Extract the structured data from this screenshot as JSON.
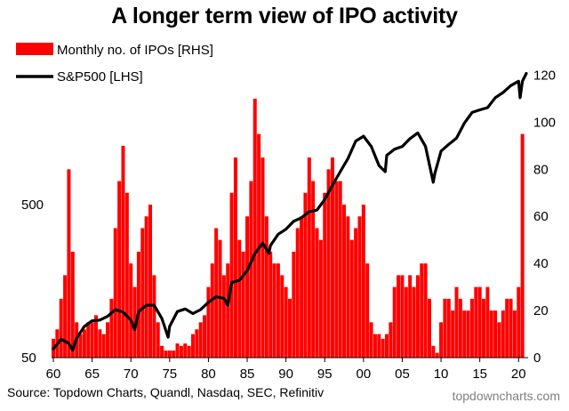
{
  "title": "A longer term view of IPO activity",
  "source": "Source: Topdown Charts, Quandl, Nasdaq, SEC, Refinitiv",
  "brand": "topdowncharts.com",
  "colors": {
    "ipo": "#ff0000",
    "sp500": "#000000",
    "brand_text": "#7f7f7f"
  },
  "chart_data": {
    "type": "bar+line",
    "title": "A longer term view of IPO activity",
    "x_tick_labels": [
      "60",
      "65",
      "70",
      "75",
      "80",
      "85",
      "90",
      "95",
      "00",
      "05",
      "10",
      "15",
      "20"
    ],
    "x_tick_years": [
      1960,
      1965,
      1970,
      1975,
      1980,
      1985,
      1990,
      1995,
      2000,
      2005,
      2010,
      2015,
      2020
    ],
    "xlim": [
      1960,
      2021
    ],
    "left_axis": {
      "scale": "log",
      "ylim": [
        50,
        5000
      ],
      "tick_labels": [
        "50",
        "500"
      ],
      "tick_values": [
        50,
        500
      ]
    },
    "right_axis": {
      "scale": "linear",
      "ylim": [
        0,
        130
      ],
      "tick_values": [
        0,
        20,
        40,
        60,
        80,
        100,
        120
      ]
    },
    "legend": {
      "placement": "top-left"
    },
    "series": [
      {
        "name": "Monthly no. of IPOs [RHS]",
        "type": "bar",
        "axis": "right",
        "color": "#ff0000",
        "x": [
          1960,
          1960.5,
          1961,
          1961.5,
          1962,
          1962.5,
          1963,
          1963.5,
          1964,
          1964.5,
          1965,
          1965.5,
          1966,
          1966.5,
          1967,
          1967.5,
          1968,
          1968.5,
          1969,
          1969.5,
          1970,
          1970.5,
          1971,
          1971.5,
          1972,
          1972.5,
          1973,
          1973.5,
          1974,
          1974.5,
          1975,
          1975.5,
          1976,
          1976.5,
          1977,
          1977.5,
          1978,
          1978.5,
          1979,
          1979.5,
          1980,
          1980.5,
          1981,
          1981.5,
          1982,
          1982.5,
          1983,
          1983.5,
          1984,
          1984.5,
          1985,
          1985.5,
          1986,
          1986.5,
          1987,
          1987.5,
          1988,
          1988.5,
          1989,
          1989.5,
          1990,
          1990.5,
          1991,
          1991.5,
          1992,
          1992.5,
          1993,
          1993.5,
          1994,
          1994.5,
          1995,
          1995.5,
          1996,
          1996.5,
          1997,
          1997.5,
          1998,
          1998.5,
          1999,
          1999.5,
          2000,
          2000.5,
          2001,
          2001.5,
          2002,
          2002.5,
          2003,
          2003.5,
          2004,
          2004.5,
          2005,
          2005.5,
          2006,
          2006.5,
          2007,
          2007.5,
          2008,
          2008.5,
          2009,
          2009.5,
          2010,
          2010.5,
          2011,
          2011.5,
          2012,
          2012.5,
          2013,
          2013.5,
          2014,
          2014.5,
          2015,
          2015.5,
          2016,
          2016.5,
          2017,
          2017.5,
          2018,
          2018.5,
          2019,
          2019.5,
          2020,
          2020.5
        ],
        "values": [
          8,
          12,
          25,
          35,
          80,
          45,
          15,
          10,
          12,
          15,
          15,
          18,
          12,
          10,
          15,
          25,
          55,
          75,
          90,
          70,
          40,
          30,
          45,
          55,
          60,
          65,
          35,
          15,
          5,
          3,
          3,
          3,
          6,
          5,
          6,
          5,
          10,
          12,
          15,
          18,
          30,
          40,
          55,
          50,
          35,
          40,
          70,
          85,
          50,
          45,
          60,
          75,
          110,
          95,
          85,
          60,
          45,
          40,
          40,
          35,
          30,
          25,
          45,
          55,
          60,
          70,
          85,
          75,
          55,
          50,
          70,
          80,
          85,
          75,
          75,
          65,
          60,
          50,
          55,
          60,
          65,
          40,
          15,
          10,
          10,
          8,
          10,
          15,
          30,
          35,
          35,
          30,
          35,
          30,
          35,
          40,
          40,
          25,
          5,
          2,
          15,
          25,
          25,
          20,
          30,
          25,
          20,
          20,
          25,
          30,
          30,
          25,
          30,
          20,
          20,
          15,
          20,
          25,
          25,
          20,
          30,
          95
        ]
      },
      {
        "name": "S&P500 [LHS]",
        "type": "line",
        "axis": "left",
        "color": "#000000",
        "x": [
          1960,
          1961,
          1962,
          1962.5,
          1963,
          1964,
          1965,
          1966,
          1967,
          1968,
          1969,
          1970,
          1970.5,
          1971,
          1972,
          1973,
          1974,
          1974.8,
          1975,
          1976,
          1977,
          1978,
          1979,
          1980,
          1981,
          1982,
          1982.5,
          1983,
          1984,
          1985,
          1986,
          1987,
          1987.8,
          1988,
          1989,
          1990,
          1991,
          1992,
          1993,
          1994,
          1995,
          1996,
          1997,
          1998,
          1999,
          2000,
          2001,
          2002,
          2002.8,
          2003,
          2004,
          2005,
          2006,
          2007,
          2008,
          2009,
          2009.2,
          2010,
          2011,
          2012,
          2013,
          2014,
          2015,
          2016,
          2017,
          2018,
          2019,
          2020,
          2020.2,
          2020.5,
          2021
        ],
        "values": [
          57,
          66,
          62,
          56,
          67,
          80,
          87,
          88,
          93,
          103,
          99,
          88,
          76,
          100,
          110,
          110,
          90,
          68,
          80,
          100,
          104,
          97,
          103,
          115,
          125,
          122,
          110,
          155,
          160,
          185,
          240,
          280,
          240,
          270,
          320,
          345,
          390,
          410,
          450,
          460,
          540,
          670,
          820,
          1000,
          1300,
          1400,
          1200,
          900,
          820,
          1050,
          1150,
          1200,
          1350,
          1470,
          1200,
          700,
          800,
          1120,
          1240,
          1360,
          1700,
          2000,
          2080,
          2150,
          2500,
          2700,
          3000,
          3200,
          2500,
          3200,
          3600
        ]
      }
    ]
  }
}
